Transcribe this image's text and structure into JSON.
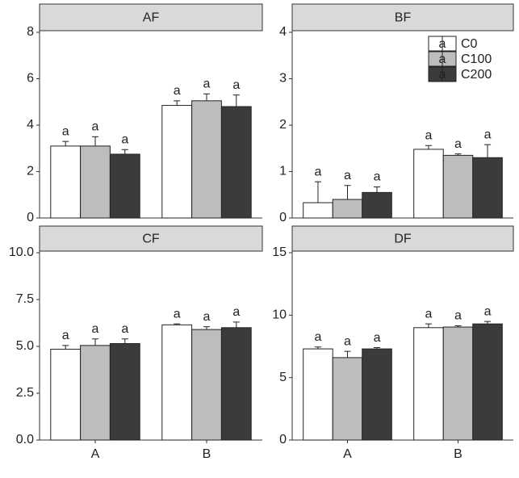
{
  "chart_data": [
    {
      "type": "bar",
      "title": "AF",
      "ylim": [
        0,
        8
      ],
      "yticks": [
        0,
        2,
        4,
        6,
        8
      ],
      "series": [
        {
          "name": "C0",
          "color": "#ffffff",
          "values": [
            3.1,
            4.85
          ],
          "errors": [
            0.2,
            0.2
          ],
          "letters": [
            "a",
            "a"
          ]
        },
        {
          "name": "C100",
          "color": "#bdbdbd",
          "values": [
            3.1,
            5.05
          ],
          "errors": [
            0.4,
            0.3
          ],
          "letters": [
            "a",
            "a"
          ]
        },
        {
          "name": "C200",
          "color": "#3b3b3b",
          "values": [
            2.75,
            4.8
          ],
          "errors": [
            0.2,
            0.5
          ],
          "letters": [
            "a",
            "a"
          ]
        }
      ]
    },
    {
      "type": "bar",
      "title": "BF",
      "ylim": [
        0,
        4
      ],
      "yticks": [
        0,
        1,
        2,
        3,
        4
      ],
      "legend": "top-right",
      "series": [
        {
          "name": "C0",
          "color": "#ffffff",
          "values": [
            0.33,
            1.48
          ],
          "errors": [
            0.45,
            0.08
          ],
          "letters": [
            "a",
            "a"
          ]
        },
        {
          "name": "C100",
          "color": "#bdbdbd",
          "values": [
            0.4,
            1.35
          ],
          "errors": [
            0.3,
            0.03
          ],
          "letters": [
            "a",
            "a"
          ]
        },
        {
          "name": "C200",
          "color": "#3b3b3b",
          "values": [
            0.55,
            1.3
          ],
          "errors": [
            0.12,
            0.28
          ],
          "letters": [
            "a",
            "a"
          ]
        }
      ]
    },
    {
      "type": "bar",
      "title": "CF",
      "ylim": [
        0,
        10
      ],
      "categories": [
        "A",
        "B"
      ],
      "yticks": [
        {
          "value": 0,
          "label": "0.0"
        },
        {
          "value": 2.5,
          "label": "2.5"
        },
        {
          "value": 5,
          "label": "5.0"
        },
        {
          "value": 7.5,
          "label": "7.5"
        },
        {
          "value": 10,
          "label": "10.0"
        }
      ],
      "series": [
        {
          "name": "C0",
          "color": "#ffffff",
          "values": [
            4.85,
            6.15
          ],
          "errors": [
            0.2,
            0.05
          ],
          "letters": [
            "a",
            "a"
          ]
        },
        {
          "name": "C100",
          "color": "#bdbdbd",
          "values": [
            5.05,
            5.9
          ],
          "errors": [
            0.35,
            0.15
          ],
          "letters": [
            "a",
            "a"
          ]
        },
        {
          "name": "C200",
          "color": "#3b3b3b",
          "values": [
            5.15,
            6.0
          ],
          "errors": [
            0.25,
            0.3
          ],
          "letters": [
            "a",
            "a"
          ]
        }
      ]
    },
    {
      "type": "bar",
      "title": "DF",
      "ylim": [
        0,
        15
      ],
      "yticks": [
        0,
        5,
        10,
        15
      ],
      "categories": [
        "A",
        "B"
      ],
      "series": [
        {
          "name": "C0",
          "color": "#ffffff",
          "values": [
            7.3,
            9.0
          ],
          "errors": [
            0.15,
            0.3
          ],
          "letters": [
            "a",
            "a"
          ]
        },
        {
          "name": "C100",
          "color": "#bdbdbd",
          "values": [
            6.6,
            9.05
          ],
          "errors": [
            0.5,
            0.1
          ],
          "letters": [
            "a",
            "a"
          ]
        },
        {
          "name": "C200",
          "color": "#3b3b3b",
          "values": [
            7.3,
            9.3
          ],
          "errors": [
            0.1,
            0.2
          ],
          "letters": [
            "a",
            "a"
          ]
        }
      ]
    }
  ]
}
